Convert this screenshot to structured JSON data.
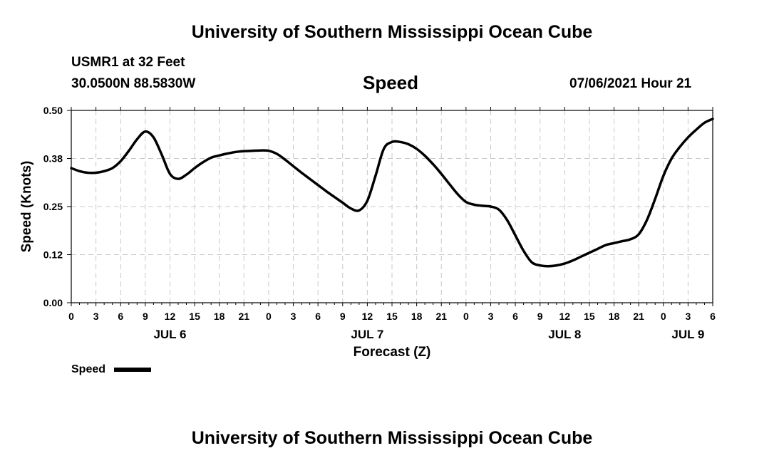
{
  "page": {
    "title_top": "University of Southern Mississippi Ocean Cube",
    "title_bottom": "University of Southern Mississippi Ocean Cube",
    "station": "USMR1 at 32 Feet",
    "coords": "30.0500N  88.5830W",
    "plot_title": "Speed",
    "timestamp": "07/06/2021 Hour 21"
  },
  "chart_data": {
    "type": "line",
    "title": "Speed",
    "xlabel": "Forecast (Z)",
    "ylabel": "Speed (Knots)",
    "ylim": [
      0,
      0.5
    ],
    "xlim": [
      0,
      78
    ],
    "grid": true,
    "y_ticks": [
      0.0,
      0.125,
      0.25,
      0.375,
      0.5
    ],
    "y_tick_labels": [
      "0.00",
      "0.12",
      "0.25",
      "0.38",
      "0.50"
    ],
    "x_ticks": [
      0,
      3,
      6,
      9,
      12,
      15,
      18,
      21,
      24,
      27,
      30,
      33,
      36,
      39,
      42,
      45,
      48,
      51,
      54,
      57,
      60,
      63,
      66,
      69,
      72,
      75,
      78
    ],
    "x_tick_labels": [
      "0",
      "3",
      "6",
      "9",
      "12",
      "15",
      "18",
      "21",
      "0",
      "3",
      "6",
      "9",
      "12",
      "15",
      "18",
      "21",
      "0",
      "3",
      "6",
      "9",
      "12",
      "15",
      "18",
      "21",
      "0",
      "3",
      "6"
    ],
    "day_labels": [
      {
        "hour": 12,
        "label": "JUL 6"
      },
      {
        "hour": 36,
        "label": "JUL 7"
      },
      {
        "hour": 60,
        "label": "JUL 8"
      },
      {
        "hour": 75,
        "label": "JUL 9"
      }
    ],
    "legend": [
      {
        "name": "Speed",
        "color": "#000000"
      }
    ],
    "series": [
      {
        "name": "Speed",
        "x": [
          0,
          1,
          2,
          3,
          4,
          5,
          6,
          7,
          8,
          9,
          10,
          11,
          12,
          13,
          14,
          15,
          16,
          17,
          18,
          19,
          20,
          21,
          22,
          23,
          24,
          25,
          26,
          27,
          28,
          29,
          30,
          31,
          32,
          33,
          34,
          35,
          36,
          37,
          38,
          39,
          40,
          41,
          42,
          43,
          44,
          45,
          46,
          47,
          48,
          49,
          50,
          51,
          52,
          53,
          54,
          55,
          56,
          57,
          58,
          59,
          60,
          61,
          62,
          63,
          64,
          65,
          66,
          67,
          68,
          69,
          70,
          71,
          72,
          73,
          74,
          75,
          76,
          77,
          78
        ],
        "values": [
          0.35,
          0.342,
          0.338,
          0.338,
          0.342,
          0.35,
          0.368,
          0.395,
          0.425,
          0.445,
          0.43,
          0.385,
          0.335,
          0.322,
          0.333,
          0.35,
          0.365,
          0.377,
          0.383,
          0.388,
          0.392,
          0.394,
          0.395,
          0.396,
          0.395,
          0.387,
          0.372,
          0.355,
          0.338,
          0.322,
          0.306,
          0.29,
          0.275,
          0.26,
          0.245,
          0.24,
          0.265,
          0.33,
          0.4,
          0.418,
          0.418,
          0.412,
          0.4,
          0.382,
          0.36,
          0.335,
          0.308,
          0.282,
          0.262,
          0.255,
          0.252,
          0.25,
          0.242,
          0.215,
          0.175,
          0.135,
          0.105,
          0.097,
          0.095,
          0.097,
          0.102,
          0.11,
          0.12,
          0.13,
          0.14,
          0.15,
          0.155,
          0.16,
          0.165,
          0.178,
          0.215,
          0.27,
          0.33,
          0.375,
          0.405,
          0.43,
          0.45,
          0.468,
          0.478
        ]
      }
    ]
  }
}
